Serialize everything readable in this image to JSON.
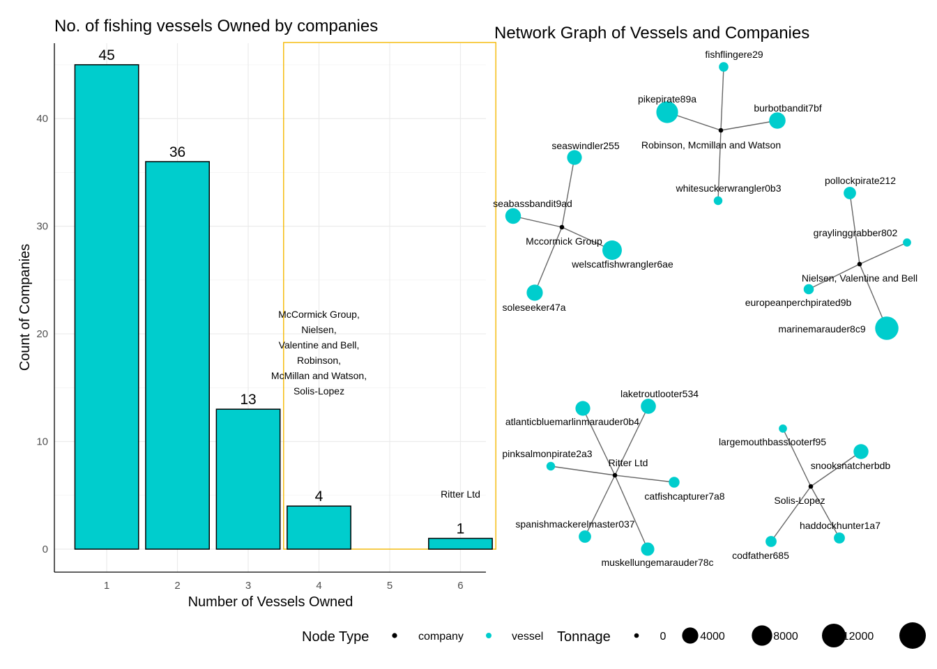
{
  "chart_data": [
    {
      "type": "bar",
      "title": "No. of fishing vessels Owned by companies",
      "xlabel": "Number of Vessels Owned",
      "ylabel": "Count of Companies",
      "categories": [
        "1",
        "2",
        "3",
        "4",
        "5",
        "6"
      ],
      "values": [
        45,
        36,
        13,
        4,
        0,
        1
      ],
      "data_labels": [
        "45",
        "36",
        "13",
        "4",
        "",
        "1"
      ],
      "ylim": [
        0,
        47
      ],
      "yticks": [
        0,
        10,
        20,
        30,
        40
      ],
      "ytick_labels": [
        "0",
        "10",
        "20",
        "30",
        "40"
      ],
      "grid": true,
      "bar_color": "#00CDCD",
      "highlight": {
        "from_category": "4",
        "to_category": "6",
        "color": "#F5B800"
      },
      "annotations": [
        {
          "category": "4",
          "y": 21.5,
          "lines": [
            "McCormick Group,",
            "Nielsen,",
            "Valentine and Bell,",
            "Robinson,",
            "McMillan and Watson,",
            "Solis-Lopez"
          ]
        },
        {
          "category": "6",
          "y": 4.8,
          "lines": [
            "Ritter Ltd"
          ]
        }
      ]
    },
    {
      "type": "network",
      "title": "Network Graph of Vessels and Companies",
      "colors": {
        "company": "#000000",
        "vessel": "#00CDCD",
        "edge": "#666666"
      },
      "nodes": [
        {
          "id": "Robinson, Mcmillan and Watson",
          "type": "company",
          "label": "Robinson, Mcmillan and Watson",
          "tonnage": 0
        },
        {
          "id": "fishflingere29",
          "type": "vessel",
          "label": "fishflingere29",
          "tonnage": 500
        },
        {
          "id": "pikepirate89a",
          "type": "vessel",
          "label": "pikepirate89a",
          "tonnage": 9500
        },
        {
          "id": "burbotbandit7bf",
          "type": "vessel",
          "label": "burbotbandit7bf",
          "tonnage": 4200
        },
        {
          "id": "whitesuckerwrangler0b3",
          "type": "vessel",
          "label": "whitesuckerwrangler0b3",
          "tonnage": 300
        },
        {
          "id": "Mccormick Group",
          "type": "company",
          "label": "Mccormick Group",
          "tonnage": 0
        },
        {
          "id": "seaswindler255",
          "type": "vessel",
          "label": "seaswindler255",
          "tonnage": 3000
        },
        {
          "id": "seabassbandit9ad",
          "type": "vessel",
          "label": "seabassbandit9ad",
          "tonnage": 3600
        },
        {
          "id": "welscatfishwrangler6ae",
          "type": "vessel",
          "label": "welscatfishwrangler6ae",
          "tonnage": 7000
        },
        {
          "id": "soleseeker47a",
          "type": "vessel",
          "label": "soleseeker47a",
          "tonnage": 4000
        },
        {
          "id": "Nielsen, Valentine and Bell",
          "type": "company",
          "label": "Nielsen, Valentine and Bell",
          "tonnage": 0
        },
        {
          "id": "pollockpirate212",
          "type": "vessel",
          "label": "pollockpirate212",
          "tonnage": 1600
        },
        {
          "id": "graylinggrabber802",
          "type": "vessel",
          "label": "graylinggrabber802",
          "tonnage": 200
        },
        {
          "id": "europeanperchpirated9b",
          "type": "vessel",
          "label": "europeanperchpirated9b",
          "tonnage": 700
        },
        {
          "id": "marinemarauder8c9",
          "type": "vessel",
          "label": "marinemarauder8c9",
          "tonnage": 11500
        },
        {
          "id": "Ritter Ltd",
          "type": "company",
          "label": "Ritter Ltd",
          "tonnage": 0
        },
        {
          "id": "atlanticbluemarlinmarauder0b4",
          "type": "vessel",
          "label": "atlanticbluemarlinmarauder0b4",
          "tonnage": 3000
        },
        {
          "id": "laketroutlooter534",
          "type": "vessel",
          "label": "laketroutlooter534",
          "tonnage": 3200
        },
        {
          "id": "pinksalmonpirate2a3",
          "type": "vessel",
          "label": "pinksalmonpirate2a3",
          "tonnage": 300
        },
        {
          "id": "catfishcapturer7a8",
          "type": "vessel",
          "label": "catfishcapturer7a8",
          "tonnage": 900
        },
        {
          "id": "spanishmackerelmaster037",
          "type": "vessel",
          "label": "spanishmackerelmaster037",
          "tonnage": 1600
        },
        {
          "id": "muskellungemarauder78c",
          "type": "vessel",
          "label": "muskellungemarauder78c",
          "tonnage": 2100
        },
        {
          "id": "Solis-Lopez",
          "type": "company",
          "label": "Solis-Lopez",
          "tonnage": 0
        },
        {
          "id": "largemouthbasslooterf95",
          "type": "vessel",
          "label": "largemouthbasslooterf95",
          "tonnage": 200
        },
        {
          "id": "snooksnatcherbdb",
          "type": "vessel",
          "label": "snooksnatcherbdb",
          "tonnage": 3100
        },
        {
          "id": "codfather685",
          "type": "vessel",
          "label": "codfather685",
          "tonnage": 1000
        },
        {
          "id": "haddockhunter1a7",
          "type": "vessel",
          "label": "haddockhunter1a7",
          "tonnage": 1000
        }
      ],
      "edges": [
        [
          "Robinson, Mcmillan and Watson",
          "fishflingere29"
        ],
        [
          "Robinson, Mcmillan and Watson",
          "pikepirate89a"
        ],
        [
          "Robinson, Mcmillan and Watson",
          "burbotbandit7bf"
        ],
        [
          "Robinson, Mcmillan and Watson",
          "whitesuckerwrangler0b3"
        ],
        [
          "Mccormick Group",
          "seaswindler255"
        ],
        [
          "Mccormick Group",
          "seabassbandit9ad"
        ],
        [
          "Mccormick Group",
          "welscatfishwrangler6ae"
        ],
        [
          "Mccormick Group",
          "soleseeker47a"
        ],
        [
          "Nielsen, Valentine and Bell",
          "pollockpirate212"
        ],
        [
          "Nielsen, Valentine and Bell",
          "graylinggrabber802"
        ],
        [
          "Nielsen, Valentine and Bell",
          "europeanperchpirated9b"
        ],
        [
          "Nielsen, Valentine and Bell",
          "marinemarauder8c9"
        ],
        [
          "Ritter Ltd",
          "atlanticbluemarlinmarauder0b4"
        ],
        [
          "Ritter Ltd",
          "laketroutlooter534"
        ],
        [
          "Ritter Ltd",
          "pinksalmonpirate2a3"
        ],
        [
          "Ritter Ltd",
          "catfishcapturer7a8"
        ],
        [
          "Ritter Ltd",
          "spanishmackerelmaster037"
        ],
        [
          "Ritter Ltd",
          "muskellungemarauder78c"
        ],
        [
          "Solis-Lopez",
          "largemouthbasslooterf95"
        ],
        [
          "Solis-Lopez",
          "snooksnatcherbdb"
        ],
        [
          "Solis-Lopez",
          "codfather685"
        ],
        [
          "Solis-Lopez",
          "haddockhunter1a7"
        ]
      ],
      "legend": {
        "placement": "bottom",
        "node_type_title": "Node Type",
        "node_types": [
          {
            "key": "company",
            "label": "company"
          },
          {
            "key": "vessel",
            "label": "vessel"
          }
        ],
        "tonnage_title": "Tonnage",
        "tonnage_values": [
          0,
          4000,
          8000,
          12000,
          16000
        ],
        "tonnage_labels": [
          "0",
          "4000",
          "8000",
          "12000",
          ""
        ]
      }
    }
  ]
}
